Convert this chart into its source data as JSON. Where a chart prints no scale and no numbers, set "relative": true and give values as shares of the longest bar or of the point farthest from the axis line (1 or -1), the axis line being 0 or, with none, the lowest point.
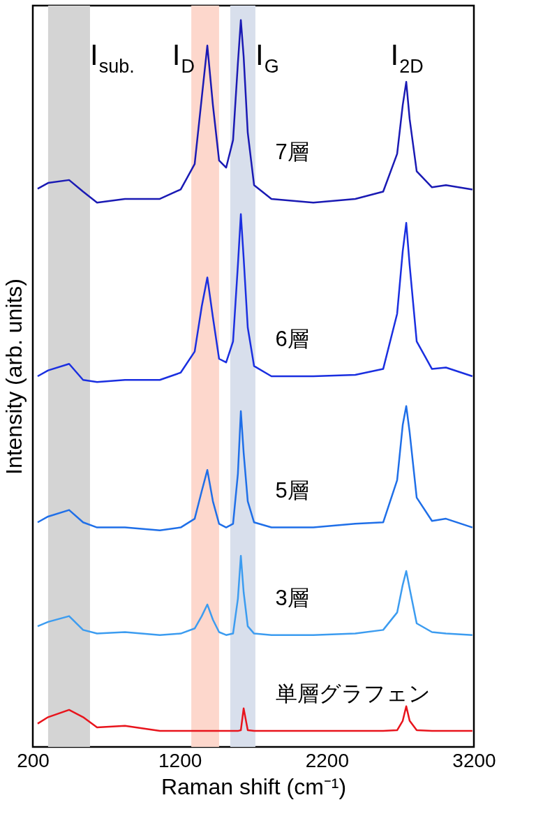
{
  "chart_data": {
    "type": "line",
    "relative": true,
    "xlabel": "Raman shift (cm⁻¹)",
    "ylabel": "Intensity (arb. units)",
    "xlim": [
      200,
      3200
    ],
    "xticks": [
      200,
      1200,
      2200,
      3200
    ],
    "grid": false,
    "line_style": "solid",
    "x": [
      233,
      304,
      447,
      542,
      637,
      827,
      1064,
      1206,
      1301,
      1349,
      1387,
      1425,
      1467,
      1515,
      1562,
      1595,
      1615,
      1634,
      1662,
      1705,
      1823,
      2108,
      2393,
      2583,
      2678,
      2716,
      2740,
      2763,
      2811,
      2915,
      3010,
      3190
    ],
    "series": [
      {
        "name": "7層",
        "color": "#1a1ab4",
        "values": [
          0.768,
          0.776,
          0.78,
          0.764,
          0.749,
          0.754,
          0.754,
          0.767,
          0.802,
          0.893,
          0.965,
          0.883,
          0.807,
          0.797,
          0.835,
          0.941,
          1.0,
          0.95,
          0.845,
          0.773,
          0.754,
          0.749,
          0.754,
          0.764,
          0.816,
          0.883,
          0.915,
          0.864,
          0.792,
          0.77,
          0.773,
          0.767
        ]
      },
      {
        "name": "6層",
        "color": "#1a2fe0",
        "values": [
          0.51,
          0.518,
          0.527,
          0.505,
          0.502,
          0.505,
          0.505,
          0.515,
          0.544,
          0.606,
          0.646,
          0.591,
          0.534,
          0.529,
          0.558,
          0.663,
          0.733,
          0.673,
          0.577,
          0.524,
          0.51,
          0.51,
          0.512,
          0.52,
          0.596,
          0.682,
          0.721,
          0.663,
          0.558,
          0.52,
          0.522,
          0.51
        ]
      },
      {
        "name": "5層",
        "color": "#1f6fe8",
        "values": [
          0.309,
          0.317,
          0.326,
          0.309,
          0.302,
          0.302,
          0.298,
          0.302,
          0.314,
          0.352,
          0.381,
          0.338,
          0.307,
          0.302,
          0.307,
          0.376,
          0.462,
          0.405,
          0.338,
          0.309,
          0.302,
          0.302,
          0.307,
          0.309,
          0.367,
          0.443,
          0.469,
          0.433,
          0.343,
          0.311,
          0.314,
          0.302
        ]
      },
      {
        "name": "3層",
        "color": "#3c9cf0",
        "values": [
          0.166,
          0.172,
          0.18,
          0.161,
          0.156,
          0.158,
          0.154,
          0.156,
          0.163,
          0.18,
          0.196,
          0.175,
          0.158,
          0.154,
          0.156,
          0.204,
          0.263,
          0.213,
          0.166,
          0.156,
          0.154,
          0.154,
          0.156,
          0.161,
          0.185,
          0.223,
          0.242,
          0.218,
          0.17,
          0.158,
          0.156,
          0.154
        ]
      },
      {
        "name": "単層グラフェン",
        "color": "#e8141c",
        "values": [
          0.032,
          0.041,
          0.051,
          0.041,
          0.027,
          0.029,
          0.022,
          0.022,
          0.022,
          0.022,
          0.022,
          0.022,
          0.022,
          0.022,
          0.022,
          0.022,
          0.023,
          0.053,
          0.023,
          0.022,
          0.022,
          0.022,
          0.022,
          0.022,
          0.023,
          0.036,
          0.056,
          0.036,
          0.023,
          0.022,
          0.022,
          0.022
        ]
      }
    ],
    "bands": [
      {
        "axis": "x",
        "from": 304,
        "to": 589,
        "label": "I$_{sub.}$",
        "color": "#d4d4d4"
      },
      {
        "axis": "x",
        "from": 1278,
        "to": 1467,
        "label": "I$_{D}$",
        "color": "#fdd7cc"
      },
      {
        "axis": "x",
        "from": 1543,
        "to": 1714,
        "label": "I$_{G}$",
        "color": "#d8dfec"
      }
    ],
    "annotations": [
      "I$_{2D}$"
    ]
  }
}
